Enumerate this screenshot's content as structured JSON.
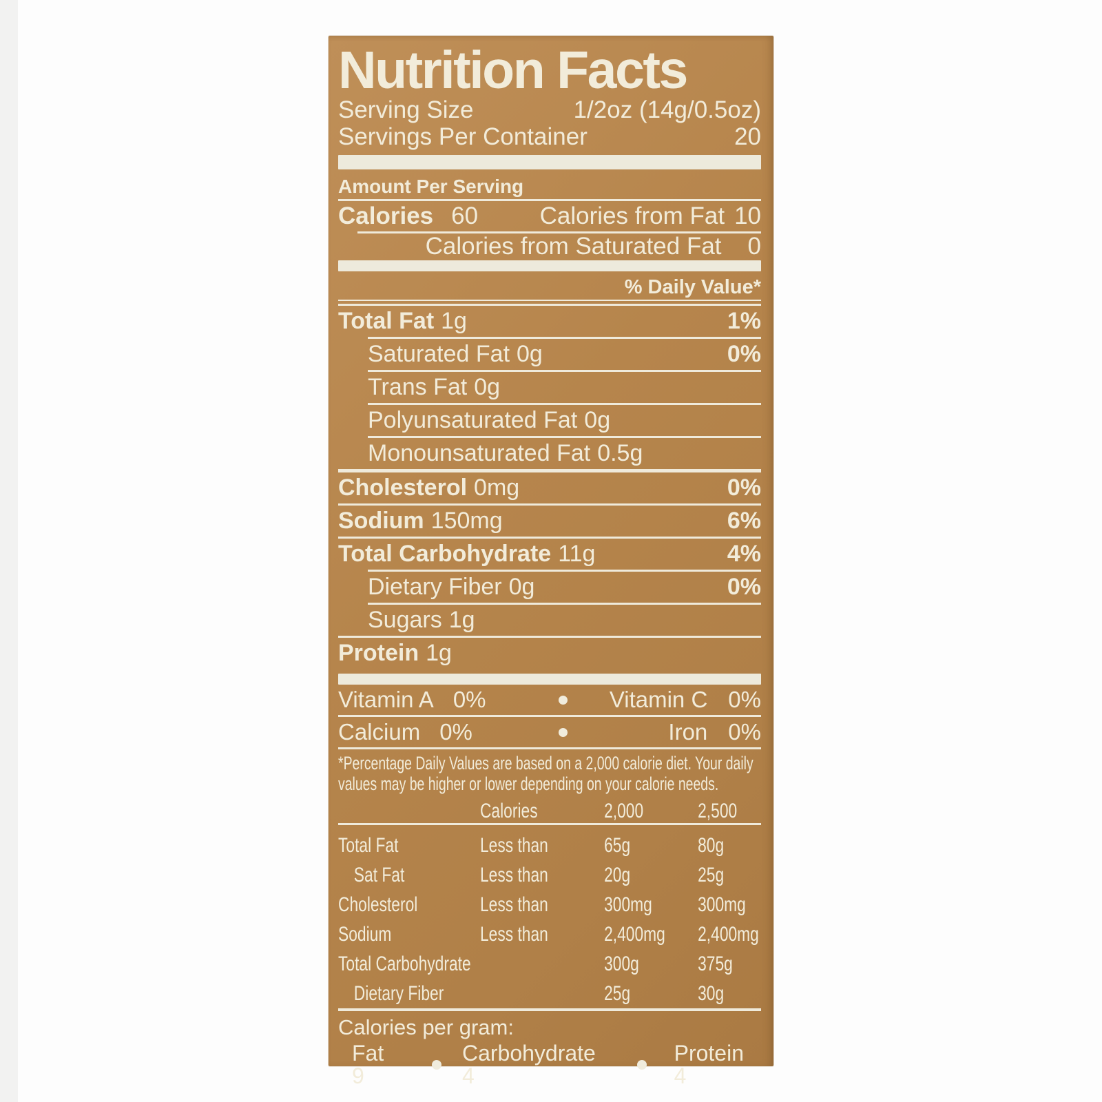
{
  "colors": {
    "label_background": "#b6854c",
    "ink_cream": "#f2ecda",
    "page_background": "#fdfdfd"
  },
  "label": {
    "title": "Nutrition Facts",
    "serving_size_label": "Serving Size",
    "serving_size_value": "1/2oz (14g/0.5oz)",
    "servings_per_container_label": "Servings Per Container",
    "servings_per_container_value": "20",
    "amount_per_serving": "Amount Per Serving",
    "calories_label": "Calories",
    "calories_value": "60",
    "calories_from_fat_label": "Calories from Fat",
    "calories_from_fat_value": "10",
    "calories_from_sat_fat_label": "Calories from Saturated Fat",
    "calories_from_sat_fat_value": "0",
    "daily_value_header": "% Daily Value*",
    "nutrients": [
      {
        "name": "Total Fat",
        "amount": "1g",
        "dv": "1%"
      },
      {
        "name": "Saturated Fat",
        "amount": "0g",
        "dv": "0%"
      },
      {
        "name": "Trans Fat",
        "amount": "0g",
        "dv": ""
      },
      {
        "name": "Polyunsaturated Fat",
        "amount": "0g",
        "dv": ""
      },
      {
        "name": "Monounsaturated Fat",
        "amount": "0.5g",
        "dv": ""
      },
      {
        "name": "Cholesterol",
        "amount": "0mg",
        "dv": "0%"
      },
      {
        "name": "Sodium",
        "amount": "150mg",
        "dv": "6%"
      },
      {
        "name": "Total Carbohydrate",
        "amount": "11g",
        "dv": "4%"
      },
      {
        "name": "Dietary Fiber",
        "amount": "0g",
        "dv": "0%"
      },
      {
        "name": "Sugars",
        "amount": "1g",
        "dv": ""
      },
      {
        "name": "Protein",
        "amount": "1g",
        "dv": ""
      }
    ],
    "vitamins": [
      {
        "left_name": "Vitamin A",
        "left_value": "0%",
        "right_name": "Vitamin C",
        "right_value": "0%"
      },
      {
        "left_name": "Calcium",
        "left_value": "0%",
        "right_name": "Iron",
        "right_value": "0%"
      }
    ],
    "footnote_line1": "*Percentage Daily Values are based on a 2,000 calorie diet. Your daily",
    "footnote_line2": "values may be higher or lower depending on your calorie needs.",
    "dv_table": {
      "header_col2": "Calories",
      "header_col3": "2,000",
      "header_col4": "2,500",
      "rows": [
        {
          "name": "Total Fat",
          "qualifier": "Less than",
          "v2000": "65g",
          "v2500": "80g"
        },
        {
          "name": "Sat Fat",
          "qualifier": "Less than",
          "v2000": "20g",
          "v2500": "25g"
        },
        {
          "name": "Cholesterol",
          "qualifier": "Less than",
          "v2000": "300mg",
          "v2500": "300mg"
        },
        {
          "name": "Sodium",
          "qualifier": "Less than",
          "v2000": "2,400mg",
          "v2500": "2,400mg"
        },
        {
          "name": "Total Carbohydrate",
          "qualifier": "",
          "v2000": "300g",
          "v2500": "375g"
        },
        {
          "name": "Dietary Fiber",
          "qualifier": "",
          "v2000": "25g",
          "v2500": "30g"
        }
      ]
    },
    "calories_per_gram_heading": "Calories per gram:",
    "cpg_fat": "Fat 9",
    "cpg_carbohydrate": "Carbohydrate 4",
    "cpg_protein": "Protein 4"
  }
}
